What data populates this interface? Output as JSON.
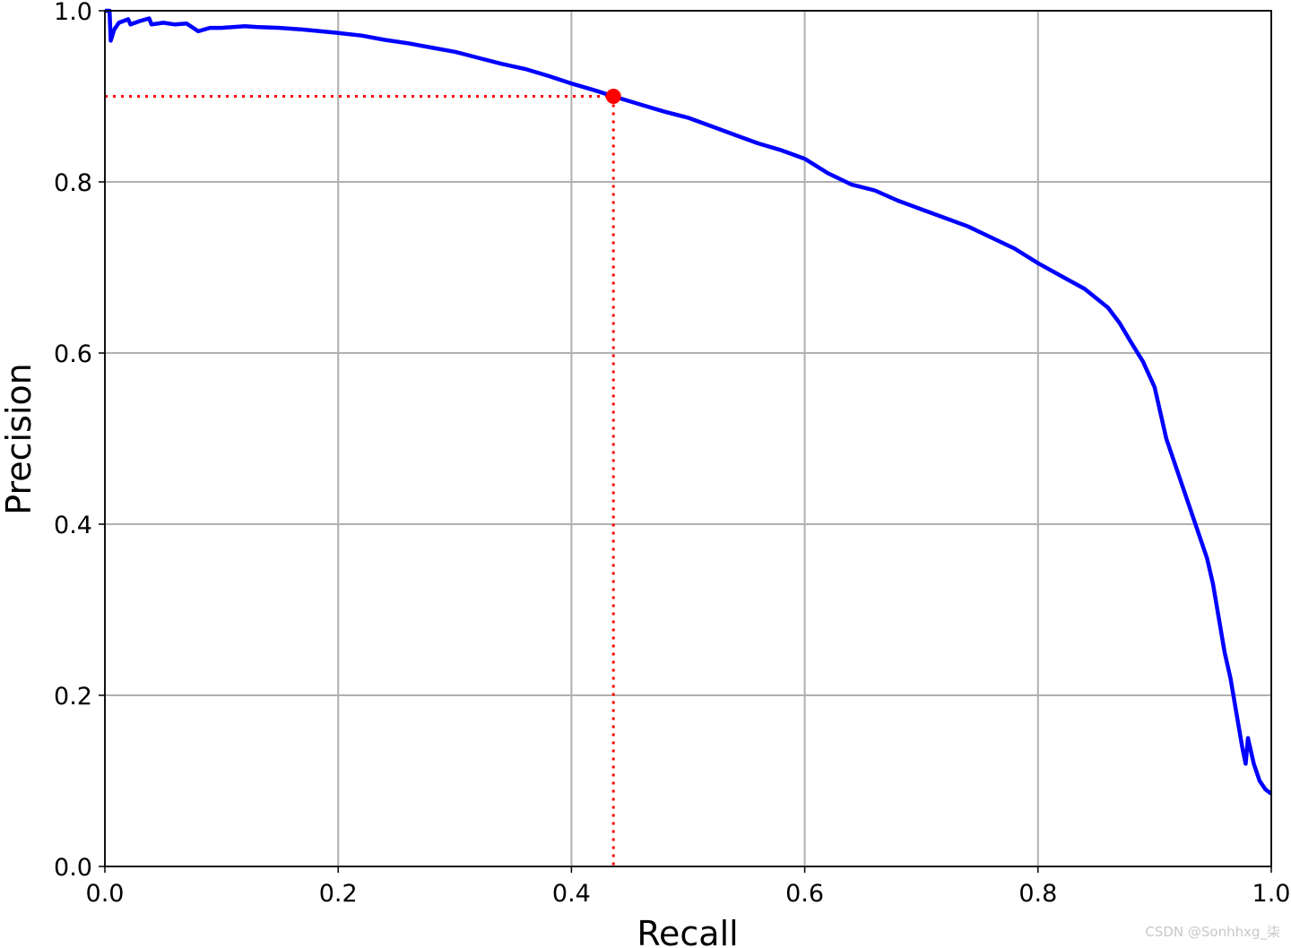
{
  "chart_data": {
    "type": "line",
    "xlabel": "Recall",
    "ylabel": "Precision",
    "xlim": [
      0.0,
      1.0
    ],
    "ylim": [
      0.0,
      1.0
    ],
    "grid": true,
    "legend": "none",
    "x_ticks": [
      "0.0",
      "0.2",
      "0.4",
      "0.6",
      "0.8",
      "1.0"
    ],
    "y_ticks": [
      "0.0",
      "0.2",
      "0.4",
      "0.6",
      "0.8",
      "1.0"
    ],
    "colors": {
      "curve": "#0000ff",
      "threshold": "#ff0000",
      "grid": "#b0b0b0"
    },
    "series": [
      {
        "x": [
          0.0,
          0.004,
          0.005,
          0.008,
          0.012,
          0.02,
          0.022,
          0.03,
          0.038,
          0.04,
          0.05,
          0.06,
          0.07,
          0.08,
          0.09,
          0.1,
          0.12,
          0.13,
          0.15,
          0.17,
          0.2,
          0.22,
          0.24,
          0.26,
          0.28,
          0.3,
          0.32,
          0.34,
          0.36,
          0.38,
          0.4,
          0.42,
          0.436,
          0.46,
          0.48,
          0.5,
          0.52,
          0.54,
          0.56,
          0.58,
          0.6,
          0.62,
          0.64,
          0.66,
          0.68,
          0.7,
          0.72,
          0.74,
          0.76,
          0.78,
          0.8,
          0.82,
          0.84,
          0.86,
          0.87,
          0.88,
          0.89,
          0.9,
          0.91,
          0.92,
          0.93,
          0.94,
          0.945,
          0.95,
          0.955,
          0.96,
          0.965,
          0.97,
          0.975,
          0.978,
          0.98,
          0.985,
          0.99,
          0.995,
          1.0
        ],
        "y": [
          1.0,
          1.0,
          0.965,
          0.978,
          0.986,
          0.99,
          0.984,
          0.988,
          0.991,
          0.984,
          0.986,
          0.984,
          0.985,
          0.976,
          0.98,
          0.98,
          0.982,
          0.981,
          0.98,
          0.978,
          0.974,
          0.971,
          0.966,
          0.962,
          0.957,
          0.952,
          0.945,
          0.938,
          0.932,
          0.924,
          0.915,
          0.907,
          0.9,
          0.89,
          0.882,
          0.875,
          0.865,
          0.855,
          0.845,
          0.837,
          0.827,
          0.81,
          0.797,
          0.79,
          0.778,
          0.768,
          0.758,
          0.748,
          0.735,
          0.722,
          0.705,
          0.69,
          0.675,
          0.653,
          0.635,
          0.612,
          0.59,
          0.56,
          0.5,
          0.46,
          0.42,
          0.38,
          0.36,
          0.33,
          0.29,
          0.25,
          0.22,
          0.18,
          0.14,
          0.12,
          0.15,
          0.12,
          0.1,
          0.09,
          0.085
        ]
      }
    ],
    "threshold_point": {
      "x": 0.436,
      "y": 0.9
    }
  },
  "watermark": "CSDN @Sonhhxg_柒"
}
